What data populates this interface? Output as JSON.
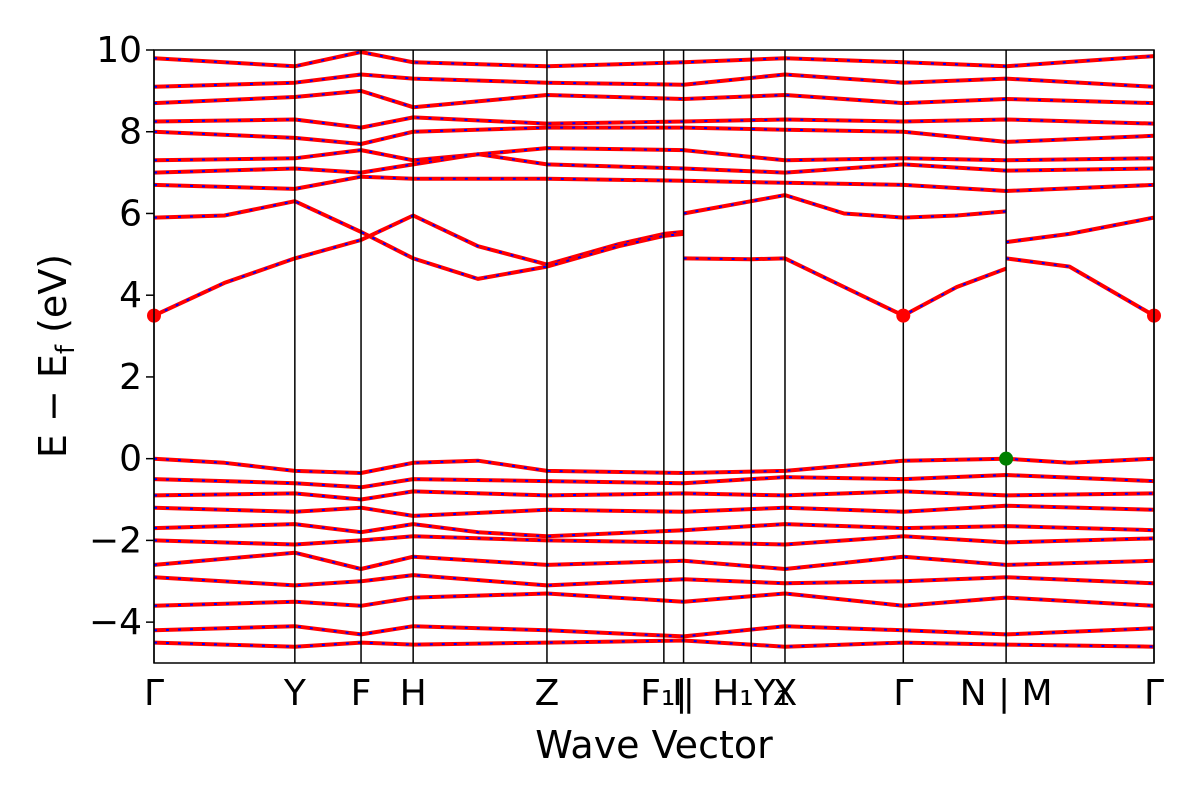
{
  "chart_data": {
    "type": "line",
    "title": "",
    "xlabel": "Wave Vector",
    "ylabel_main": "E − E",
    "ylabel_sub": "f",
    "ylabel_unit": " (eV)",
    "ylim": [
      -5,
      10
    ],
    "yticks": [
      -4,
      -2,
      0,
      2,
      4,
      6,
      8,
      10
    ],
    "ytick_labels": [
      "−4",
      "−2",
      "0",
      "2",
      "4",
      "6",
      "8",
      "10"
    ],
    "xlim": [
      0,
      7.1
    ],
    "kpoint_ticks": [
      {
        "x": 0.0,
        "label": "Γ"
      },
      {
        "x": 1.0,
        "label": "Y"
      },
      {
        "x": 1.47,
        "label": "F"
      },
      {
        "x": 1.84,
        "label": "H"
      },
      {
        "x": 2.79,
        "label": "Z"
      },
      {
        "x": 3.62,
        "label": "F₁|"
      },
      {
        "x": 3.76,
        "label": "I|"
      },
      {
        "x": 4.24,
        "label": "H₁Y₁"
      },
      {
        "x": 4.48,
        "label": "X"
      },
      {
        "x": 5.32,
        "label": "Γ"
      },
      {
        "x": 6.05,
        "label": "N | M"
      },
      {
        "x": 7.1,
        "label": "Γ"
      }
    ],
    "colors": {
      "band": "#ff0000",
      "band_overlay": "#0000ff",
      "cbm_marker": "#ff0000",
      "vbm_marker": "#008000"
    },
    "series": [
      {
        "values": [
          {
            "x": 0.0,
            "y": 3.5
          },
          {
            "x": 0.5,
            "y": 4.3
          },
          {
            "x": 1.0,
            "y": 4.9
          },
          {
            "x": 1.47,
            "y": 5.35
          },
          {
            "x": 1.84,
            "y": 5.95
          },
          {
            "x": 2.3,
            "y": 5.2
          },
          {
            "x": 2.79,
            "y": 4.75
          },
          {
            "x": 3.3,
            "y": 5.25
          },
          {
            "x": 3.62,
            "y": 5.5
          },
          {
            "x": 3.76,
            "y": 5.55
          }
        ]
      },
      {
        "values": [
          {
            "x": 0.0,
            "y": 5.9
          },
          {
            "x": 0.5,
            "y": 5.95
          },
          {
            "x": 1.0,
            "y": 6.3
          },
          {
            "x": 1.47,
            "y": 5.55
          },
          {
            "x": 1.84,
            "y": 4.9
          },
          {
            "x": 2.3,
            "y": 4.4
          },
          {
            "x": 2.79,
            "y": 4.7
          },
          {
            "x": 3.3,
            "y": 5.2
          },
          {
            "x": 3.62,
            "y": 5.45
          },
          {
            "x": 3.76,
            "y": 5.5
          }
        ]
      },
      {
        "values": [
          {
            "x": 3.76,
            "y": 4.9
          },
          {
            "x": 4.24,
            "y": 4.88
          },
          {
            "x": 4.48,
            "y": 4.9
          },
          {
            "x": 4.9,
            "y": 4.2
          },
          {
            "x": 5.32,
            "y": 3.5
          },
          {
            "x": 5.7,
            "y": 4.2
          },
          {
            "x": 6.05,
            "y": 4.65
          }
        ]
      },
      {
        "values": [
          {
            "x": 3.76,
            "y": 6.0
          },
          {
            "x": 4.24,
            "y": 6.3
          },
          {
            "x": 4.48,
            "y": 6.45
          },
          {
            "x": 4.9,
            "y": 6.0
          },
          {
            "x": 5.32,
            "y": 5.9
          },
          {
            "x": 5.7,
            "y": 5.95
          },
          {
            "x": 6.05,
            "y": 6.05
          }
        ]
      },
      {
        "values": [
          {
            "x": 6.05,
            "y": 4.9
          },
          {
            "x": 6.5,
            "y": 4.7
          },
          {
            "x": 7.1,
            "y": 3.5
          }
        ]
      },
      {
        "values": [
          {
            "x": 6.05,
            "y": 5.3
          },
          {
            "x": 6.5,
            "y": 5.5
          },
          {
            "x": 7.1,
            "y": 5.9
          }
        ]
      },
      {
        "values": [
          {
            "x": 0.0,
            "y": 6.7
          },
          {
            "x": 1.0,
            "y": 6.6
          },
          {
            "x": 1.47,
            "y": 6.9
          },
          {
            "x": 1.84,
            "y": 6.85
          },
          {
            "x": 2.79,
            "y": 6.85
          },
          {
            "x": 3.76,
            "y": 6.8
          },
          {
            "x": 4.48,
            "y": 6.75
          },
          {
            "x": 5.32,
            "y": 6.7
          },
          {
            "x": 6.05,
            "y": 6.55
          },
          {
            "x": 7.1,
            "y": 6.7
          }
        ]
      },
      {
        "values": [
          {
            "x": 0.0,
            "y": 7.0
          },
          {
            "x": 1.0,
            "y": 7.1
          },
          {
            "x": 1.47,
            "y": 7.0
          },
          {
            "x": 1.84,
            "y": 7.2
          },
          {
            "x": 2.3,
            "y": 7.45
          },
          {
            "x": 2.79,
            "y": 7.2
          },
          {
            "x": 3.76,
            "y": 7.1
          },
          {
            "x": 4.48,
            "y": 7.0
          },
          {
            "x": 5.32,
            "y": 7.2
          },
          {
            "x": 6.05,
            "y": 7.05
          },
          {
            "x": 7.1,
            "y": 7.1
          }
        ]
      },
      {
        "values": [
          {
            "x": 0.0,
            "y": 7.3
          },
          {
            "x": 1.0,
            "y": 7.35
          },
          {
            "x": 1.47,
            "y": 7.55
          },
          {
            "x": 1.84,
            "y": 7.3
          },
          {
            "x": 2.79,
            "y": 7.6
          },
          {
            "x": 3.76,
            "y": 7.55
          },
          {
            "x": 4.48,
            "y": 7.3
          },
          {
            "x": 5.32,
            "y": 7.35
          },
          {
            "x": 6.05,
            "y": 7.3
          },
          {
            "x": 7.1,
            "y": 7.35
          }
        ]
      },
      {
        "values": [
          {
            "x": 0.0,
            "y": 8.0
          },
          {
            "x": 1.0,
            "y": 7.85
          },
          {
            "x": 1.47,
            "y": 7.7
          },
          {
            "x": 1.84,
            "y": 8.0
          },
          {
            "x": 2.79,
            "y": 8.1
          },
          {
            "x": 3.76,
            "y": 8.1
          },
          {
            "x": 4.48,
            "y": 8.05
          },
          {
            "x": 5.32,
            "y": 8.0
          },
          {
            "x": 6.05,
            "y": 7.75
          },
          {
            "x": 7.1,
            "y": 7.9
          }
        ]
      },
      {
        "values": [
          {
            "x": 0.0,
            "y": 8.25
          },
          {
            "x": 1.0,
            "y": 8.3
          },
          {
            "x": 1.47,
            "y": 8.1
          },
          {
            "x": 1.84,
            "y": 8.35
          },
          {
            "x": 2.79,
            "y": 8.2
          },
          {
            "x": 3.76,
            "y": 8.25
          },
          {
            "x": 4.48,
            "y": 8.3
          },
          {
            "x": 5.32,
            "y": 8.25
          },
          {
            "x": 6.05,
            "y": 8.3
          },
          {
            "x": 7.1,
            "y": 8.2
          }
        ]
      },
      {
        "values": [
          {
            "x": 0.0,
            "y": 8.7
          },
          {
            "x": 1.0,
            "y": 8.85
          },
          {
            "x": 1.47,
            "y": 9.0
          },
          {
            "x": 1.84,
            "y": 8.6
          },
          {
            "x": 2.79,
            "y": 8.9
          },
          {
            "x": 3.76,
            "y": 8.8
          },
          {
            "x": 4.48,
            "y": 8.9
          },
          {
            "x": 5.32,
            "y": 8.7
          },
          {
            "x": 6.05,
            "y": 8.8
          },
          {
            "x": 7.1,
            "y": 8.7
          }
        ]
      },
      {
        "values": [
          {
            "x": 0.0,
            "y": 9.1
          },
          {
            "x": 1.0,
            "y": 9.2
          },
          {
            "x": 1.47,
            "y": 9.4
          },
          {
            "x": 1.84,
            "y": 9.3
          },
          {
            "x": 2.79,
            "y": 9.2
          },
          {
            "x": 3.76,
            "y": 9.15
          },
          {
            "x": 4.48,
            "y": 9.4
          },
          {
            "x": 5.32,
            "y": 9.2
          },
          {
            "x": 6.05,
            "y": 9.3
          },
          {
            "x": 7.1,
            "y": 9.1
          }
        ]
      },
      {
        "values": [
          {
            "x": 0.0,
            "y": 9.8
          },
          {
            "x": 1.0,
            "y": 9.6
          },
          {
            "x": 1.47,
            "y": 9.95
          },
          {
            "x": 1.84,
            "y": 9.7
          },
          {
            "x": 2.79,
            "y": 9.6
          },
          {
            "x": 3.76,
            "y": 9.7
          },
          {
            "x": 4.48,
            "y": 9.8
          },
          {
            "x": 5.32,
            "y": 9.7
          },
          {
            "x": 6.05,
            "y": 9.6
          },
          {
            "x": 7.1,
            "y": 9.85
          }
        ]
      },
      {
        "values": [
          {
            "x": 0.0,
            "y": 0.0
          },
          {
            "x": 0.5,
            "y": -0.1
          },
          {
            "x": 1.0,
            "y": -0.3
          },
          {
            "x": 1.47,
            "y": -0.35
          },
          {
            "x": 1.84,
            "y": -0.1
          },
          {
            "x": 2.3,
            "y": -0.05
          },
          {
            "x": 2.79,
            "y": -0.3
          },
          {
            "x": 3.76,
            "y": -0.35
          },
          {
            "x": 4.48,
            "y": -0.3
          },
          {
            "x": 5.32,
            "y": -0.05
          },
          {
            "x": 6.05,
            "y": 0.0
          },
          {
            "x": 6.5,
            "y": -0.1
          },
          {
            "x": 7.1,
            "y": 0.0
          }
        ]
      },
      {
        "values": [
          {
            "x": 0.0,
            "y": -0.5
          },
          {
            "x": 1.0,
            "y": -0.6
          },
          {
            "x": 1.47,
            "y": -0.7
          },
          {
            "x": 1.84,
            "y": -0.5
          },
          {
            "x": 2.79,
            "y": -0.55
          },
          {
            "x": 3.76,
            "y": -0.6
          },
          {
            "x": 4.48,
            "y": -0.45
          },
          {
            "x": 5.32,
            "y": -0.5
          },
          {
            "x": 6.05,
            "y": -0.4
          },
          {
            "x": 7.1,
            "y": -0.55
          }
        ]
      },
      {
        "values": [
          {
            "x": 0.0,
            "y": -0.9
          },
          {
            "x": 1.0,
            "y": -0.85
          },
          {
            "x": 1.47,
            "y": -1.0
          },
          {
            "x": 1.84,
            "y": -0.8
          },
          {
            "x": 2.79,
            "y": -0.9
          },
          {
            "x": 3.76,
            "y": -0.85
          },
          {
            "x": 4.48,
            "y": -0.9
          },
          {
            "x": 5.32,
            "y": -0.8
          },
          {
            "x": 6.05,
            "y": -0.9
          },
          {
            "x": 7.1,
            "y": -0.85
          }
        ]
      },
      {
        "values": [
          {
            "x": 0.0,
            "y": -1.2
          },
          {
            "x": 1.0,
            "y": -1.3
          },
          {
            "x": 1.47,
            "y": -1.2
          },
          {
            "x": 1.84,
            "y": -1.4
          },
          {
            "x": 2.79,
            "y": -1.25
          },
          {
            "x": 3.76,
            "y": -1.3
          },
          {
            "x": 4.48,
            "y": -1.2
          },
          {
            "x": 5.32,
            "y": -1.3
          },
          {
            "x": 6.05,
            "y": -1.15
          },
          {
            "x": 7.1,
            "y": -1.25
          }
        ]
      },
      {
        "values": [
          {
            "x": 0.0,
            "y": -1.7
          },
          {
            "x": 1.0,
            "y": -1.6
          },
          {
            "x": 1.47,
            "y": -1.8
          },
          {
            "x": 1.84,
            "y": -1.6
          },
          {
            "x": 2.3,
            "y": -1.8
          },
          {
            "x": 2.79,
            "y": -1.9
          },
          {
            "x": 3.76,
            "y": -1.75
          },
          {
            "x": 4.48,
            "y": -1.6
          },
          {
            "x": 5.32,
            "y": -1.7
          },
          {
            "x": 6.05,
            "y": -1.65
          },
          {
            "x": 7.1,
            "y": -1.75
          }
        ]
      },
      {
        "values": [
          {
            "x": 0.0,
            "y": -2.0
          },
          {
            "x": 1.0,
            "y": -2.1
          },
          {
            "x": 1.47,
            "y": -2.0
          },
          {
            "x": 1.84,
            "y": -1.9
          },
          {
            "x": 2.79,
            "y": -2.0
          },
          {
            "x": 3.76,
            "y": -2.05
          },
          {
            "x": 4.48,
            "y": -2.1
          },
          {
            "x": 5.32,
            "y": -1.9
          },
          {
            "x": 6.05,
            "y": -2.05
          },
          {
            "x": 7.1,
            "y": -1.95
          }
        ]
      },
      {
        "values": [
          {
            "x": 0.0,
            "y": -2.6
          },
          {
            "x": 1.0,
            "y": -2.3
          },
          {
            "x": 1.47,
            "y": -2.7
          },
          {
            "x": 1.84,
            "y": -2.4
          },
          {
            "x": 2.79,
            "y": -2.6
          },
          {
            "x": 3.76,
            "y": -2.5
          },
          {
            "x": 4.48,
            "y": -2.7
          },
          {
            "x": 5.32,
            "y": -2.4
          },
          {
            "x": 6.05,
            "y": -2.6
          },
          {
            "x": 7.1,
            "y": -2.5
          }
        ]
      },
      {
        "values": [
          {
            "x": 0.0,
            "y": -2.9
          },
          {
            "x": 1.0,
            "y": -3.1
          },
          {
            "x": 1.47,
            "y": -3.0
          },
          {
            "x": 1.84,
            "y": -2.85
          },
          {
            "x": 2.79,
            "y": -3.1
          },
          {
            "x": 3.76,
            "y": -2.95
          },
          {
            "x": 4.48,
            "y": -3.05
          },
          {
            "x": 5.32,
            "y": -3.0
          },
          {
            "x": 6.05,
            "y": -2.9
          },
          {
            "x": 7.1,
            "y": -3.05
          }
        ]
      },
      {
        "values": [
          {
            "x": 0.0,
            "y": -3.6
          },
          {
            "x": 1.0,
            "y": -3.5
          },
          {
            "x": 1.47,
            "y": -3.6
          },
          {
            "x": 1.84,
            "y": -3.4
          },
          {
            "x": 2.79,
            "y": -3.3
          },
          {
            "x": 3.76,
            "y": -3.5
          },
          {
            "x": 4.48,
            "y": -3.3
          },
          {
            "x": 5.32,
            "y": -3.6
          },
          {
            "x": 6.05,
            "y": -3.4
          },
          {
            "x": 7.1,
            "y": -3.6
          }
        ]
      },
      {
        "values": [
          {
            "x": 0.0,
            "y": -4.2
          },
          {
            "x": 1.0,
            "y": -4.1
          },
          {
            "x": 1.47,
            "y": -4.3
          },
          {
            "x": 1.84,
            "y": -4.1
          },
          {
            "x": 2.79,
            "y": -4.2
          },
          {
            "x": 3.76,
            "y": -4.35
          },
          {
            "x": 4.48,
            "y": -4.1
          },
          {
            "x": 5.32,
            "y": -4.2
          },
          {
            "x": 6.05,
            "y": -4.3
          },
          {
            "x": 7.1,
            "y": -4.15
          }
        ]
      },
      {
        "values": [
          {
            "x": 0.0,
            "y": -4.5
          },
          {
            "x": 1.0,
            "y": -4.6
          },
          {
            "x": 1.47,
            "y": -4.5
          },
          {
            "x": 1.84,
            "y": -4.55
          },
          {
            "x": 2.79,
            "y": -4.5
          },
          {
            "x": 3.76,
            "y": -4.45
          },
          {
            "x": 4.48,
            "y": -4.6
          },
          {
            "x": 5.32,
            "y": -4.5
          },
          {
            "x": 6.05,
            "y": -4.55
          },
          {
            "x": 7.1,
            "y": -4.6
          }
        ]
      }
    ],
    "markers": [
      {
        "x": 0.0,
        "y": 3.5,
        "color": "#ff0000"
      },
      {
        "x": 5.32,
        "y": 3.5,
        "color": "#ff0000"
      },
      {
        "x": 7.1,
        "y": 3.5,
        "color": "#ff0000"
      },
      {
        "x": 6.05,
        "y": 0.0,
        "color": "#008000"
      }
    ]
  }
}
